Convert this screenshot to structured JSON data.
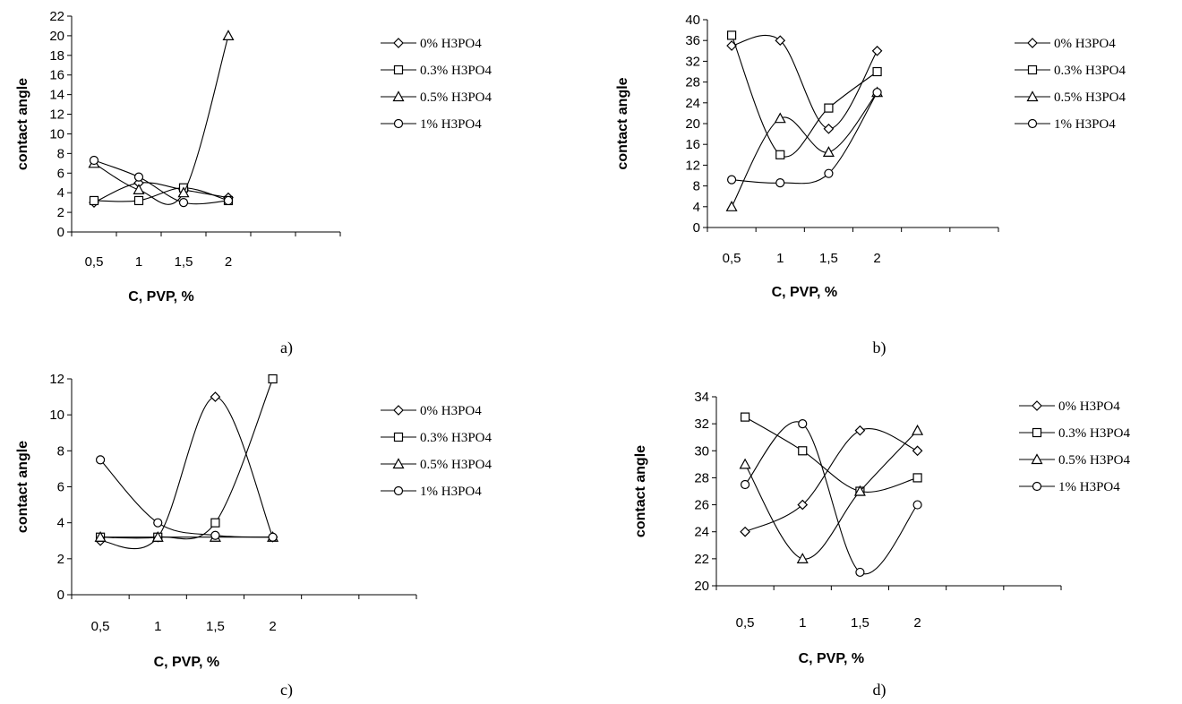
{
  "chart_data": [
    {
      "panel": "a)",
      "type": "line",
      "xlabel": "C, PVP, %",
      "ylabel": "contact  angle",
      "categories": [
        "0,5",
        "1",
        "1,5",
        "2"
      ],
      "ylim": [
        0,
        22
      ],
      "ytick_step": 2,
      "yticks": [
        "0",
        "2",
        "4",
        "6",
        "8",
        "10",
        "12",
        "14",
        "16",
        "18",
        "20",
        "22"
      ],
      "series": [
        {
          "name": "0% H3PO4",
          "marker": "diamond",
          "values": [
            3.0,
            5.0,
            4.3,
            3.5
          ]
        },
        {
          "name": "0.3% H3PO4",
          "marker": "square",
          "values": [
            3.2,
            3.2,
            4.5,
            3.2
          ]
        },
        {
          "name": "0.5% H3PO4",
          "marker": "triangle",
          "values": [
            7.0,
            4.3,
            4.0,
            20.0
          ]
        },
        {
          "name": "1% H3PO4",
          "marker": "circle",
          "values": [
            7.3,
            5.6,
            3.0,
            3.2
          ]
        }
      ]
    },
    {
      "panel": "b)",
      "type": "line",
      "xlabel": "C, PVP, %",
      "ylabel": "contact  angle",
      "categories": [
        "0,5",
        "1",
        "1,5",
        "2"
      ],
      "ylim": [
        0,
        40
      ],
      "ytick_step": 4,
      "yticks": [
        "0",
        "4",
        "8",
        "12",
        "16",
        "20",
        "24",
        "28",
        "32",
        "36",
        "40"
      ],
      "series": [
        {
          "name": "0% H3PO4",
          "marker": "diamond",
          "values": [
            35,
            36,
            19,
            34
          ]
        },
        {
          "name": "0.3% H3PO4",
          "marker": "square",
          "values": [
            37,
            14,
            23,
            30
          ]
        },
        {
          "name": "0.5% H3PO4",
          "marker": "triangle",
          "values": [
            4,
            21,
            14.5,
            26
          ]
        },
        {
          "name": "1% H3PO4",
          "marker": "circle",
          "values": [
            9.2,
            8.6,
            10.4,
            26
          ]
        }
      ]
    },
    {
      "panel": "c)",
      "type": "line",
      "xlabel": "C, PVP, %",
      "ylabel": "contact  angle",
      "categories": [
        "0,5",
        "1",
        "1,5",
        "2"
      ],
      "ylim": [
        0,
        12
      ],
      "ytick_step": 2,
      "yticks": [
        "0",
        "2",
        "4",
        "6",
        "8",
        "10",
        "12"
      ],
      "series": [
        {
          "name": "0% H3PO4",
          "marker": "diamond",
          "values": [
            3.0,
            3.2,
            11.0,
            3.2
          ]
        },
        {
          "name": "0.3% H3PO4",
          "marker": "square",
          "values": [
            3.2,
            3.2,
            4.0,
            12.0
          ]
        },
        {
          "name": "0.5% H3PO4",
          "marker": "triangle",
          "values": [
            3.2,
            3.2,
            3.2,
            3.2
          ]
        },
        {
          "name": "1% H3PO4",
          "marker": "circle",
          "values": [
            7.5,
            4.0,
            3.3,
            3.2
          ]
        }
      ]
    },
    {
      "panel": "d)",
      "type": "line",
      "xlabel": "C, PVP, %",
      "ylabel": "contact  angle",
      "categories": [
        "0,5",
        "1",
        "1,5",
        "2"
      ],
      "ylim": [
        20,
        34
      ],
      "ytick_step": 2,
      "yticks": [
        "20",
        "22",
        "24",
        "26",
        "28",
        "30",
        "32",
        "34"
      ],
      "series": [
        {
          "name": "0% H3PO4",
          "marker": "diamond",
          "values": [
            24,
            26,
            31.5,
            30
          ]
        },
        {
          "name": "0.3% H3PO4",
          "marker": "square",
          "values": [
            32.5,
            30,
            27,
            28
          ]
        },
        {
          "name": "0.5% H3PO4",
          "marker": "triangle",
          "values": [
            29,
            22,
            27,
            31.5
          ]
        },
        {
          "name": "1% H3PO4",
          "marker": "circle",
          "values": [
            27.5,
            32,
            21,
            26
          ]
        }
      ]
    }
  ]
}
